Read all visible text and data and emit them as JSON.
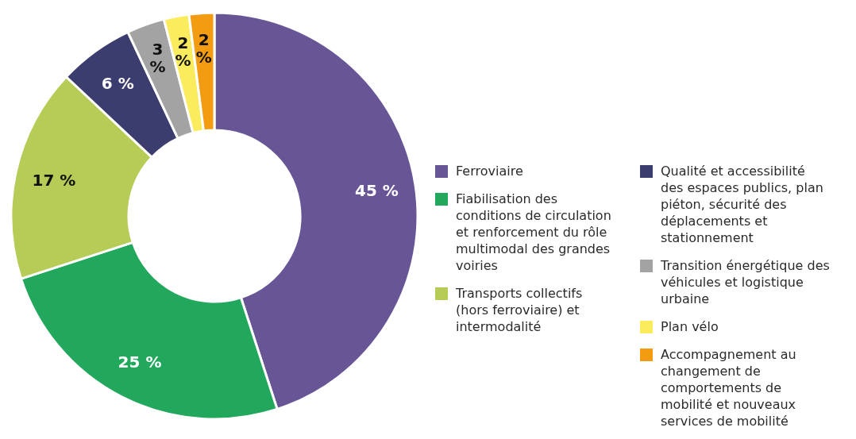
{
  "chart_data": {
    "type": "donut",
    "categories": [
      "Ferroviaire",
      "Fiabilisation des conditions de circulation et renforcement du rôle multimodal des grandes voiries",
      "Transports collectifs (hors ferroviaire) et intermodalité",
      "Qualité et accessibilité des espaces publics, plan piéton, sécurité des déplacements et stationnement",
      "Transition énergétique des véhicules et logistique urbaine",
      "Plan vélo",
      "Accompagnement au changement de comportements de mobilité et nouveaux services de mobilité"
    ],
    "values": [
      45,
      25,
      17,
      6,
      3,
      2,
      2
    ],
    "colors": [
      "#675596",
      "#22a85c",
      "#b5cc57",
      "#3b3d6e",
      "#a3a3a3",
      "#fbec5d",
      "#f39c12"
    ],
    "value_labels": [
      "45 %",
      "25 %",
      "17 %",
      "6 %",
      "3 %",
      "2 %",
      "2 %"
    ],
    "legend": "right"
  }
}
